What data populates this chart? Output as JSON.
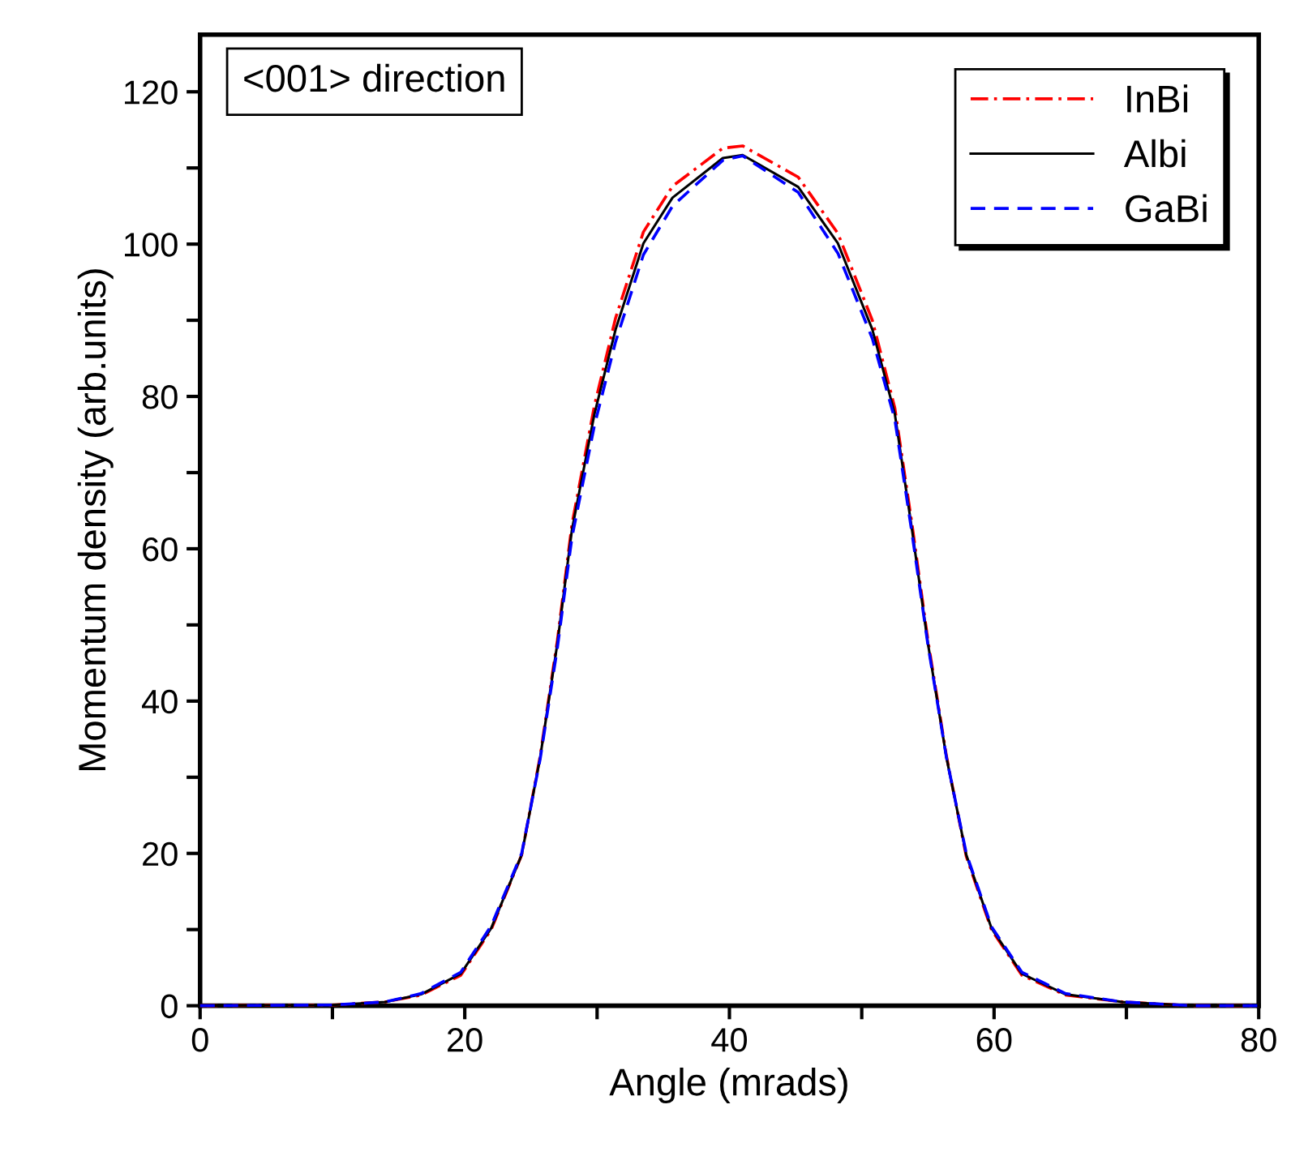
{
  "chart_data": {
    "type": "line",
    "xlabel": "Angle (mrads)",
    "ylabel": "Momentum density (arb.units)",
    "annotations": [
      "<001> direction"
    ],
    "x": [
      0,
      10,
      14,
      16.7,
      19.7,
      22,
      24.3,
      25.7,
      27,
      28.1,
      29.8,
      31.4,
      33.5,
      35.7,
      39.5,
      41,
      45.2,
      48.2,
      50.8,
      52.5,
      53.8,
      55,
      56.4,
      57.9,
      59.8,
      62.1,
      65.4,
      69.7,
      75,
      80
    ],
    "series": [
      {
        "name": "InBi",
        "color": "#ff0000",
        "line_style": "dashdot",
        "values": [
          0,
          0.1,
          0.5,
          1.4,
          4.0,
          10.0,
          19.8,
          32.8,
          48,
          63.2,
          78.8,
          90.3,
          101.6,
          107.6,
          112.6,
          112.9,
          108.8,
          101.4,
          90.0,
          78.5,
          63.2,
          48,
          32.8,
          19.6,
          10.0,
          4.0,
          1.4,
          0.5,
          0,
          0
        ]
      },
      {
        "name": "Albi",
        "color": "#000000",
        "line_style": "solid",
        "values": [
          0,
          0.1,
          0.5,
          1.5,
          4.2,
          10.2,
          19.8,
          32.6,
          47.6,
          62.5,
          77.7,
          88.8,
          100.1,
          106.1,
          111.3,
          111.7,
          107.5,
          100.1,
          88.8,
          77.7,
          62.5,
          47.6,
          32.6,
          19.8,
          10.2,
          4.2,
          1.5,
          0.5,
          0,
          0
        ]
      },
      {
        "name": "GaBi",
        "color": "#0000ff",
        "line_style": "dashed",
        "values": [
          0,
          0.1,
          0.5,
          1.6,
          4.4,
          10.5,
          20,
          32.4,
          47,
          61.5,
          76.2,
          87.2,
          98.6,
          105.0,
          111.0,
          111.6,
          106.8,
          98.8,
          87.6,
          77.0,
          62.0,
          47.4,
          32.6,
          20,
          10.4,
          4.4,
          1.6,
          0.5,
          0,
          0
        ]
      }
    ],
    "xlim": [
      0,
      80
    ],
    "xticks": [
      0,
      {
        "value": 10,
        "label": null
      },
      20,
      {
        "value": 30,
        "label": null
      },
      40,
      {
        "value": 50,
        "label": null
      },
      60,
      {
        "value": 70,
        "label": null
      },
      80
    ],
    "ylim": [
      0,
      127.5
    ],
    "yticks": [
      0,
      {
        "value": 10,
        "label": null
      },
      20,
      {
        "value": 30,
        "label": null
      },
      40,
      {
        "value": 50,
        "label": null
      },
      60,
      {
        "value": 70,
        "label": null
      },
      80,
      {
        "value": 90,
        "label": null
      },
      100,
      {
        "value": 110,
        "label": null
      },
      120
    ],
    "grid": false,
    "legend": "top right",
    "marker": "none"
  }
}
